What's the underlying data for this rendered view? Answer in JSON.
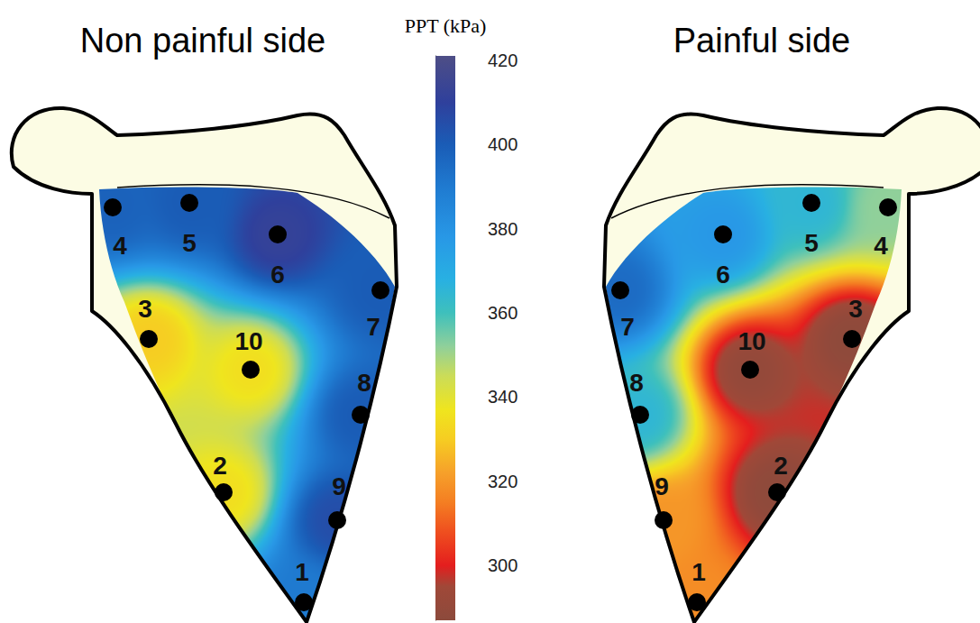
{
  "chart_data": {
    "type": "contour",
    "panels": [
      {
        "title": "Non painful side",
        "points": [
          {
            "label": "1",
            "value": 390
          },
          {
            "label": "2",
            "value": 335
          },
          {
            "label": "3",
            "value": 330
          },
          {
            "label": "4",
            "value": 398
          },
          {
            "label": "5",
            "value": 400
          },
          {
            "label": "6",
            "value": 412
          },
          {
            "label": "7",
            "value": 400
          },
          {
            "label": "8",
            "value": 400
          },
          {
            "label": "9",
            "value": 405
          },
          {
            "label": "10",
            "value": 335
          }
        ]
      },
      {
        "title": "Painful side",
        "points": [
          {
            "label": "1",
            "value": 318
          },
          {
            "label": "2",
            "value": 288
          },
          {
            "label": "3",
            "value": 288
          },
          {
            "label": "4",
            "value": 352
          },
          {
            "label": "5",
            "value": 365
          },
          {
            "label": "6",
            "value": 378
          },
          {
            "label": "7",
            "value": 395
          },
          {
            "label": "8",
            "value": 365
          },
          {
            "label": "9",
            "value": 320
          },
          {
            "label": "10",
            "value": 290
          }
        ]
      }
    ],
    "colorbar": {
      "title": "PPT (kPa)",
      "range": [
        287,
        421
      ],
      "ticks": [
        300,
        320,
        340,
        360,
        380,
        400,
        420
      ]
    }
  }
}
